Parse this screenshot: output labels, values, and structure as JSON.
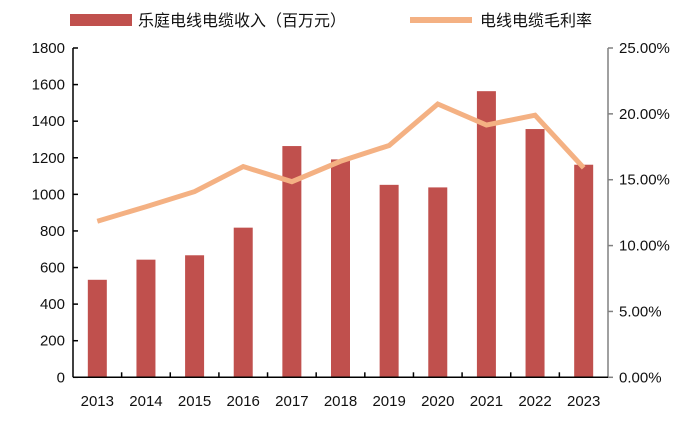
{
  "chart_data": {
    "type": "bar+line",
    "title": "",
    "categories": [
      "2013",
      "2014",
      "2015",
      "2016",
      "2017",
      "2018",
      "2019",
      "2020",
      "2021",
      "2022",
      "2023"
    ],
    "series": [
      {
        "name": "乐庭电线电缆收入（百万元）",
        "type": "bar",
        "axis": "left",
        "color": "#c0504d",
        "values": [
          533,
          643,
          667,
          818,
          1264,
          1191,
          1052,
          1038,
          1564,
          1357,
          1162
        ]
      },
      {
        "name": "电线电缆毛利率",
        "type": "line",
        "axis": "right",
        "color": "#f4b183",
        "values": [
          11.85,
          12.95,
          14.1,
          16.0,
          14.85,
          16.4,
          17.6,
          20.75,
          19.15,
          19.9,
          15.9
        ]
      }
    ],
    "left_axis": {
      "min": 0,
      "max": 1800,
      "ticks": [
        "0",
        "200",
        "400",
        "600",
        "800",
        "1000",
        "1200",
        "1400",
        "1600",
        "1800"
      ]
    },
    "right_axis": {
      "min": 0,
      "max": 25,
      "ticks": [
        "0.00%",
        "5.00%",
        "10.00%",
        "15.00%",
        "20.00%",
        "25.00%"
      ]
    },
    "grid": false,
    "legend": "top"
  }
}
